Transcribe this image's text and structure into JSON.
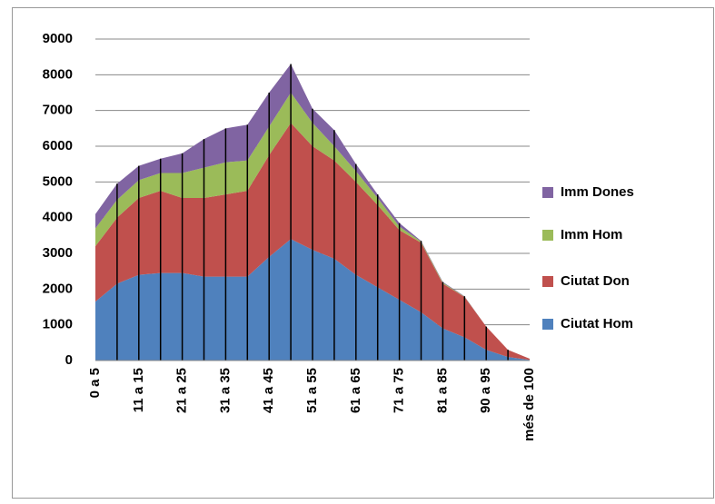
{
  "chart_data": {
    "type": "stacked_area",
    "categories": [
      "0 a 5",
      null,
      "11 a 15",
      null,
      "21 a 25",
      null,
      "31 a 35",
      null,
      "41 a 45",
      null,
      "51 a 55",
      null,
      "61 a 65",
      null,
      "71 a 75",
      null,
      "81 a 85",
      null,
      "90 a 95",
      null,
      "més de 100"
    ],
    "series": [
      {
        "name": "Ciutat Hom",
        "color": "#4f81bd",
        "values": [
          1650,
          2150,
          2400,
          2450,
          2450,
          2350,
          2350,
          2350,
          2900,
          3400,
          3100,
          2850,
          2400,
          2050,
          1700,
          1350,
          900,
          650,
          300,
          100,
          20
        ]
      },
      {
        "name": "Ciutat Don",
        "color": "#c0504d",
        "values": [
          1550,
          1850,
          2150,
          2300,
          2100,
          2200,
          2300,
          2400,
          2850,
          3250,
          2900,
          2750,
          2600,
          2300,
          1950,
          1950,
          1250,
          1130,
          650,
          200,
          30
        ]
      },
      {
        "name": "Imm Hom",
        "color": "#9bbb59",
        "values": [
          500,
          500,
          500,
          500,
          700,
          850,
          900,
          850,
          800,
          850,
          650,
          400,
          300,
          200,
          100,
          30,
          30,
          10,
          0,
          0,
          0
        ]
      },
      {
        "name": "Imm Dones",
        "color": "#8064a2",
        "values": [
          400,
          450,
          400,
          400,
          550,
          800,
          950,
          1000,
          950,
          800,
          400,
          450,
          200,
          100,
          100,
          20,
          20,
          10,
          0,
          0,
          0
        ]
      }
    ],
    "ylim": [
      0,
      9000
    ],
    "yticks": [
      0,
      1000,
      2000,
      3000,
      4000,
      5000,
      6000,
      7000,
      8000,
      9000
    ],
    "grid": true,
    "legend": "right",
    "drop_lines": true
  }
}
